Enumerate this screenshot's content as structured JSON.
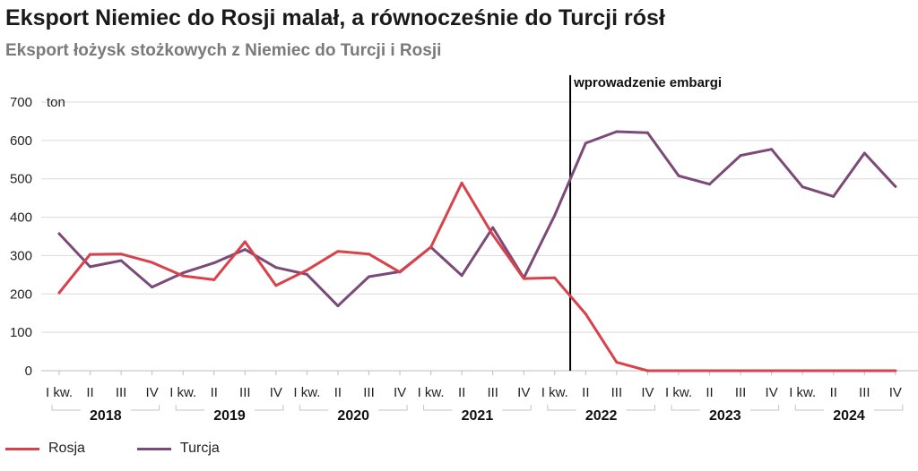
{
  "title": "Eksport Niemiec do Rosji malał, a równocześnie do Turcji rósł",
  "subtitle": "Eksport łożysk stożkowych z Niemiec do Turcji i Rosji",
  "colors": {
    "rosja": "#d9414b",
    "turcja": "#7b4a78",
    "grid": "#d9d9d9",
    "embargo": "#000000"
  },
  "chart_data": {
    "type": "line",
    "title": "Eksport Niemiec do Rosji malał, a równocześnie do Turcji rósł",
    "subtitle": "Eksport łożysk stożkowych z Niemiec do Turcji i Rosji",
    "ylabel": "ton",
    "ylim": [
      0,
      700
    ],
    "yticks": [
      0,
      100,
      200,
      300,
      400,
      500,
      600,
      700
    ],
    "grid": true,
    "legend": "bottom-left",
    "quarter_labels": [
      "I kw.",
      "II",
      "III",
      "IV"
    ],
    "years": [
      "2018",
      "2019",
      "2020",
      "2021",
      "2022",
      "2023",
      "2024"
    ],
    "categories": [
      "I kw. 2018",
      "II 2018",
      "III 2018",
      "IV 2018",
      "I kw. 2019",
      "II 2019",
      "III 2019",
      "IV 2019",
      "I kw. 2020",
      "II 2020",
      "III 2020",
      "IV 2020",
      "I kw. 2021",
      "II 2021",
      "III 2021",
      "IV 2021",
      "I kw. 2022",
      "II 2022",
      "III 2022",
      "IV 2022",
      "I kw. 2023",
      "II 2023",
      "III 2023",
      "IV 2023",
      "I kw. 2024",
      "II 2024",
      "III 2024",
      "IV 2024"
    ],
    "series": [
      {
        "name": "Rosja",
        "color": "#d9414b",
        "values": [
          203,
          303,
          304,
          282,
          247,
          237,
          336,
          222,
          262,
          311,
          304,
          257,
          322,
          489,
          354,
          240,
          242,
          148,
          22,
          0,
          0,
          0,
          0,
          0,
          0,
          0,
          0,
          0
        ]
      },
      {
        "name": "Turcja",
        "color": "#7b4a78",
        "values": [
          357,
          271,
          287,
          218,
          255,
          281,
          316,
          269,
          251,
          169,
          245,
          258,
          322,
          248,
          373,
          242,
          405,
          593,
          623,
          620,
          508,
          486,
          561,
          577,
          479,
          454,
          567,
          480
        ]
      }
    ],
    "annotations": [
      {
        "text": "wprowadzenie embargi",
        "x_between": [
          "I kw. 2022",
          "II 2022"
        ]
      }
    ]
  }
}
